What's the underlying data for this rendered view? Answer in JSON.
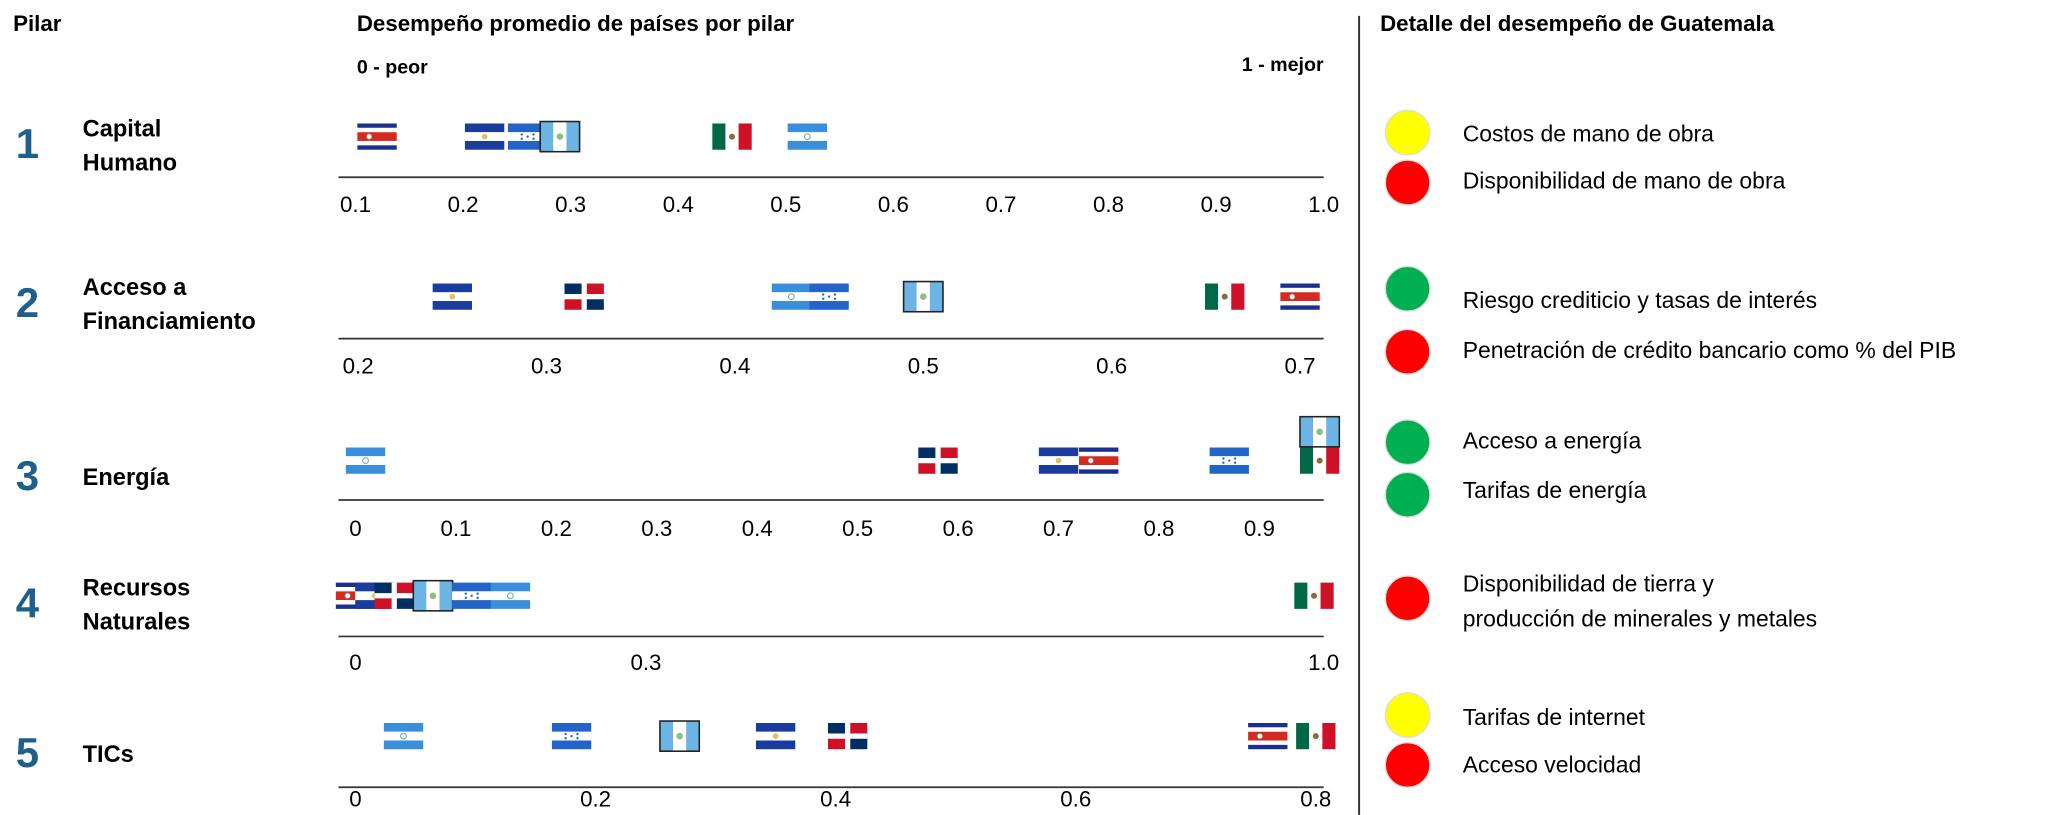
{
  "header": {
    "pillar": "Pilar",
    "average": "Desempeño promedio de países por pilar",
    "worst": "0 - peor",
    "best": "1 - mejor",
    "detail": "Detalle del desempeño de Guatemala"
  },
  "chart_data": [
    {
      "type": "strip",
      "number": "1",
      "title_lines": [
        "Capital",
        "Humano"
      ],
      "xlim": [
        0.1,
        1.0
      ],
      "xticks": [
        0.1,
        0.2,
        0.3,
        0.4,
        0.5,
        0.6,
        0.7,
        0.8,
        0.9,
        {
          "value": 1.0,
          "label": "1.0"
        }
      ],
      "flags": [
        "cr",
        "sv",
        "hn",
        "gt",
        "mx",
        "ni"
      ],
      "values": [
        0.12,
        0.22,
        0.26,
        0.29,
        0.45,
        0.52
      ]
    },
    {
      "type": "strip",
      "number": "2",
      "title_lines": [
        "Acceso a",
        "Financiamiento"
      ],
      "xlim": [
        0.2,
        0.7
      ],
      "xticks": [
        0.2,
        0.3,
        0.4,
        0.5,
        0.6,
        0.7
      ],
      "flags": [
        "sv",
        "do",
        "ni",
        "hn",
        "gt",
        "mx",
        "cr"
      ],
      "values": [
        0.25,
        0.32,
        0.43,
        0.45,
        0.5,
        0.66,
        0.7
      ]
    },
    {
      "type": "strip",
      "number": "3",
      "title_lines": [
        "Energía"
      ],
      "xlim": [
        0,
        0.9
      ],
      "xticks": [
        0,
        0.1,
        0.2,
        0.3,
        0.4,
        0.5,
        0.6,
        0.7,
        0.8,
        0.9
      ],
      "flags": [
        "ni",
        "do",
        "sv",
        "cr",
        "hn",
        "mx",
        "gt"
      ],
      "values": [
        0.01,
        0.58,
        0.7,
        0.74,
        0.87,
        0.96,
        0.96
      ]
    },
    {
      "type": "strip",
      "number": "4",
      "title_lines": [
        "Recursos",
        "Naturales"
      ],
      "xlim": [
        0,
        1.0
      ],
      "xticks": [
        0,
        0.3,
        {
          "value": 1.0,
          "label": "1.0"
        }
      ],
      "flags": [
        "cr",
        "sv",
        "do",
        "gt",
        "hn",
        "ni",
        "mx"
      ],
      "values": [
        0.0,
        0.02,
        0.04,
        0.08,
        0.12,
        0.16,
        0.99
      ]
    },
    {
      "type": "strip",
      "number": "5",
      "title_lines": [
        "TICs"
      ],
      "xlim": [
        0,
        0.8
      ],
      "xticks": [
        0,
        0.2,
        0.4,
        0.6,
        0.8
      ],
      "flags": [
        "ni",
        "hn",
        "gt",
        "sv",
        "do",
        "cr",
        "mx"
      ],
      "values": [
        0.04,
        0.18,
        0.27,
        0.35,
        0.41,
        0.76,
        0.8
      ]
    }
  ],
  "detail": [
    {
      "lines": [
        "Costos de mano de obra"
      ],
      "color": "#ffff00"
    },
    {
      "lines": [
        "Disponibilidad de mano de obra"
      ],
      "color": "#ff0000"
    },
    {
      "lines": [
        "Riesgo crediticio y tasas de interés"
      ],
      "color": "#00b050"
    },
    {
      "lines": [
        "Penetración de crédito bancario como % del PIB"
      ],
      "color": "#ff0000"
    },
    {
      "lines": [
        "Acceso a energía"
      ],
      "color": "#00b050"
    },
    {
      "lines": [
        "Tarifas de energía"
      ],
      "color": "#00b050"
    },
    {
      "lines": [
        "Disponibilidad de tierra y",
        "producción de minerales y metales"
      ],
      "color": "#ff0000"
    },
    {
      "lines": [
        "Tarifas de internet"
      ],
      "color": "#ffff00"
    },
    {
      "lines": [
        "Acceso velocidad"
      ],
      "color": "#ff0000"
    }
  ]
}
